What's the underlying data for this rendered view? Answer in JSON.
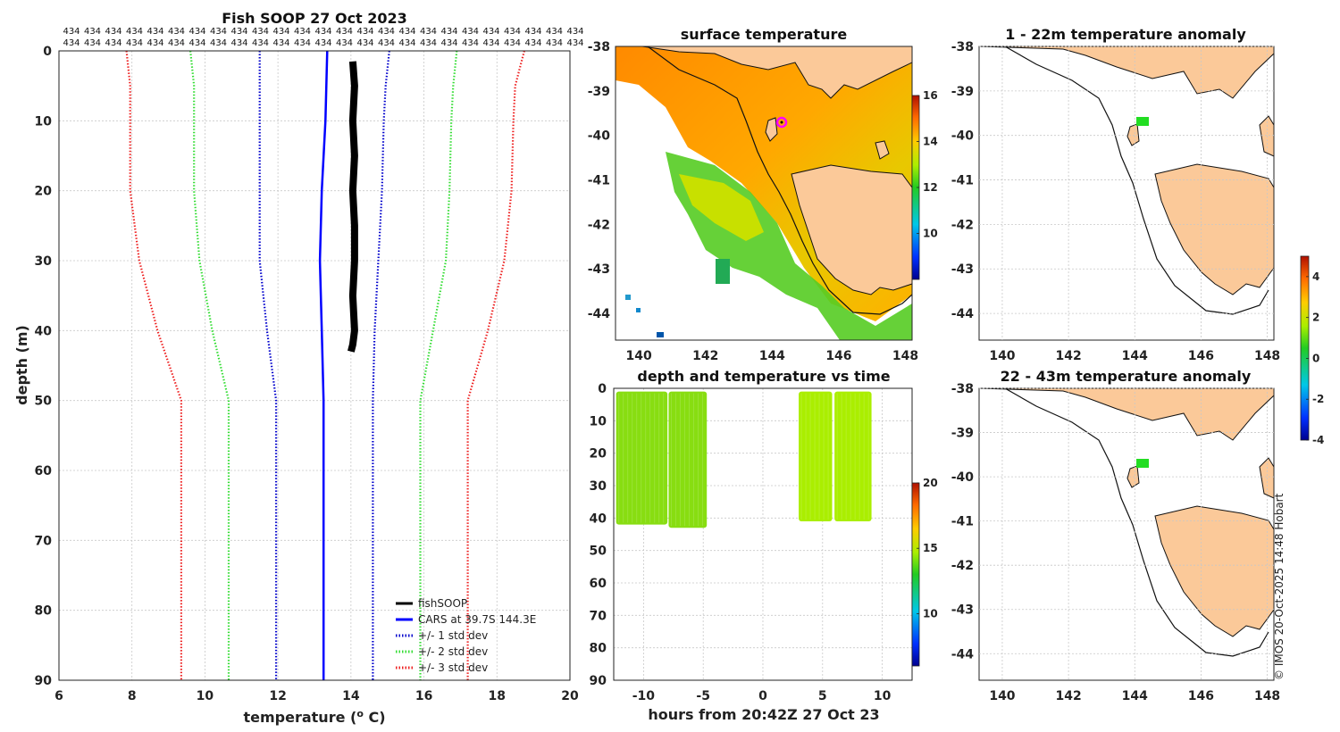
{
  "colors": {
    "black": "#000000",
    "cars": "#0000ff",
    "std1": "#0000cc",
    "std2": "#33dd33",
    "std3": "#ee2222",
    "land": "#fbc999",
    "coast": "#111111",
    "magenta": "#ff00ff",
    "anomaly_green": "#22dd22"
  },
  "chart_data": [
    {
      "type": "line",
      "title": "Fish SOOP 27 Oct 2023",
      "xlabel": "temperature (o C)",
      "xlabel_main": "temperature (",
      "xlabel_sup": "o",
      "xlabel_end": " C)",
      "ylabel": "depth (m)",
      "xlim": [
        6,
        20
      ],
      "ylim": [
        90,
        0
      ],
      "xticks": [
        "6",
        "8",
        "10",
        "12",
        "14",
        "16",
        "18",
        "20"
      ],
      "yticks": [
        "0",
        "10",
        "20",
        "30",
        "40",
        "50",
        "60",
        "70",
        "80",
        "90"
      ],
      "sample_counts_row": [
        "434",
        "434",
        "434",
        "434",
        "434",
        "434",
        "434",
        "434",
        "434",
        "434",
        "434",
        "434",
        "434",
        "434",
        "434",
        "434",
        "434",
        "434",
        "434",
        "434",
        "434",
        "434",
        "434",
        "434",
        "434"
      ],
      "series": [
        {
          "name": "fishSOOP",
          "style": "solid",
          "color": "#000000",
          "points": [
            [
              14.05,
              1.5
            ],
            [
              14.1,
              5
            ],
            [
              14.05,
              10
            ],
            [
              14.1,
              15
            ],
            [
              14.05,
              20
            ],
            [
              14.1,
              25
            ],
            [
              14.1,
              30
            ],
            [
              14.05,
              35
            ],
            [
              14.1,
              40
            ],
            [
              14.05,
              42
            ],
            [
              14.0,
              43
            ]
          ]
        },
        {
          "name": "CARS at 39.7S 144.3E",
          "style": "solid",
          "color": "#0000ff",
          "points": [
            [
              13.35,
              0
            ],
            [
              13.3,
              10
            ],
            [
              13.2,
              20
            ],
            [
              13.15,
              30
            ],
            [
              13.2,
              40
            ],
            [
              13.25,
              50
            ],
            [
              13.25,
              60
            ],
            [
              13.25,
              70
            ],
            [
              13.25,
              80
            ],
            [
              13.25,
              90
            ]
          ]
        },
        {
          "name": "-1 std",
          "style": "dotted",
          "color": "#0000cc",
          "points": [
            [
              11.5,
              0
            ],
            [
              11.5,
              5
            ],
            [
              11.5,
              10
            ],
            [
              11.5,
              20
            ],
            [
              11.5,
              30
            ],
            [
              11.7,
              40
            ],
            [
              11.95,
              50
            ],
            [
              11.95,
              60
            ],
            [
              11.95,
              70
            ],
            [
              11.95,
              80
            ],
            [
              11.95,
              90
            ]
          ]
        },
        {
          "name": "+1 std",
          "style": "dotted",
          "color": "#0000cc",
          "points": [
            [
              15.05,
              0
            ],
            [
              14.95,
              5
            ],
            [
              14.9,
              10
            ],
            [
              14.85,
              20
            ],
            [
              14.75,
              30
            ],
            [
              14.65,
              40
            ],
            [
              14.6,
              50
            ],
            [
              14.6,
              60
            ],
            [
              14.6,
              70
            ],
            [
              14.6,
              80
            ],
            [
              14.6,
              90
            ]
          ]
        },
        {
          "name": "-2 std",
          "style": "dotted",
          "color": "#33dd33",
          "points": [
            [
              9.6,
              0
            ],
            [
              9.7,
              5
            ],
            [
              9.7,
              10
            ],
            [
              9.7,
              20
            ],
            [
              9.85,
              30
            ],
            [
              10.2,
              40
            ],
            [
              10.65,
              50
            ],
            [
              10.65,
              60
            ],
            [
              10.65,
              70
            ],
            [
              10.65,
              80
            ],
            [
              10.65,
              90
            ]
          ]
        },
        {
          "name": "+2 std",
          "style": "dotted",
          "color": "#33dd33",
          "points": [
            [
              16.9,
              0
            ],
            [
              16.8,
              5
            ],
            [
              16.75,
              10
            ],
            [
              16.7,
              20
            ],
            [
              16.6,
              30
            ],
            [
              16.25,
              40
            ],
            [
              15.9,
              50
            ],
            [
              15.9,
              60
            ],
            [
              15.9,
              70
            ],
            [
              15.9,
              80
            ],
            [
              15.9,
              90
            ]
          ]
        },
        {
          "name": "-3 std",
          "style": "dotted",
          "color": "#ee2222",
          "points": [
            [
              7.85,
              0
            ],
            [
              7.95,
              5
            ],
            [
              7.95,
              10
            ],
            [
              7.95,
              20
            ],
            [
              8.2,
              30
            ],
            [
              8.7,
              40
            ],
            [
              9.35,
              50
            ],
            [
              9.35,
              60
            ],
            [
              9.35,
              70
            ],
            [
              9.35,
              80
            ],
            [
              9.35,
              90
            ]
          ]
        },
        {
          "name": "+3 std",
          "style": "dotted",
          "color": "#ee2222",
          "points": [
            [
              18.75,
              0
            ],
            [
              18.5,
              5
            ],
            [
              18.45,
              10
            ],
            [
              18.4,
              20
            ],
            [
              18.2,
              30
            ],
            [
              17.75,
              40
            ],
            [
              17.2,
              50
            ],
            [
              17.2,
              60
            ],
            [
              17.2,
              70
            ],
            [
              17.2,
              80
            ],
            [
              17.2,
              90
            ]
          ]
        }
      ],
      "legend": [
        {
          "label": "fishSOOP",
          "style": "solid",
          "color": "#000000"
        },
        {
          "label": "CARS at 39.7S 144.3E",
          "style": "solid",
          "color": "#0000ff"
        },
        {
          "label": "+/- 1 std dev",
          "style": "dotted",
          "color": "#0000cc"
        },
        {
          "label": "+/- 2 std dev",
          "style": "dotted",
          "color": "#33dd33"
        },
        {
          "label": "+/- 3 std dev",
          "style": "dotted",
          "color": "#ee2222"
        }
      ],
      "legend_position": "bottom-right"
    },
    {
      "type": "heatmap",
      "title": "surface temperature",
      "xlim": [
        139.3,
        148.2
      ],
      "ylim": [
        -44.6,
        -38
      ],
      "xticks": [
        "140",
        "142",
        "144",
        "146",
        "148"
      ],
      "yticks": [
        "-38",
        "-39",
        "-40",
        "-41",
        "-42",
        "-43",
        "-44"
      ],
      "colorbar": {
        "min": 8,
        "max": 16,
        "ticks": [
          "16",
          "14",
          "12",
          "10"
        ]
      },
      "vessel_position": {
        "lon": 144.3,
        "lat": -39.7
      }
    },
    {
      "type": "scatter",
      "title": "depth and temperature vs time",
      "xlabel": "hours from 20:42Z 27 Oct 23",
      "xlim": [
        -12.5,
        12.5
      ],
      "ylim": [
        90,
        0
      ],
      "xticks": [
        "-10",
        "-5",
        "0",
        "5",
        "10"
      ],
      "yticks": [
        "0",
        "10",
        "20",
        "30",
        "40",
        "50",
        "60",
        "70",
        "80",
        "90"
      ],
      "colorbar": {
        "min": 6,
        "max": 20,
        "ticks": [
          "20",
          "15",
          "10"
        ]
      },
      "segments": [
        {
          "t_start": -12.3,
          "t_end": -8.0,
          "depth_min": 1,
          "depth_max": 42,
          "temp": 14.1
        },
        {
          "t_start": -7.9,
          "t_end": -4.7,
          "depth_min": 1,
          "depth_max": 43,
          "temp": 14.1
        },
        {
          "t_start": 3.0,
          "t_end": 5.8,
          "depth_min": 1,
          "depth_max": 41,
          "temp": 14.6
        },
        {
          "t_start": 6.0,
          "t_end": 9.1,
          "depth_min": 1,
          "depth_max": 41,
          "temp": 14.7
        }
      ]
    },
    {
      "type": "heatmap",
      "title": "1 - 22m temperature anomaly",
      "xlim": [
        139.3,
        148.2
      ],
      "ylim": [
        -44.6,
        -38
      ],
      "xticks": [
        "140",
        "142",
        "144",
        "146",
        "148"
      ],
      "yticks": [
        "-38",
        "-39",
        "-40",
        "-41",
        "-42",
        "-43",
        "-44"
      ],
      "anomaly_patch": {
        "lon": 144.3,
        "lat": -39.7,
        "value": 0.5
      }
    },
    {
      "type": "heatmap",
      "title": "22 - 43m temperature anomaly",
      "xlim": [
        139.3,
        148.2
      ],
      "ylim": [
        -44.6,
        -38
      ],
      "xticks": [
        "140",
        "142",
        "144",
        "146",
        "148"
      ],
      "yticks": [
        "-38",
        "-39",
        "-40",
        "-41",
        "-42",
        "-43",
        "-44"
      ],
      "anomaly_patch": {
        "lon": 144.3,
        "lat": -39.7,
        "value": 0.5
      },
      "colorbar": {
        "min": -4,
        "max": 5,
        "ticks": [
          "4",
          "2",
          "0",
          "-2",
          "-4"
        ]
      }
    }
  ],
  "credit": "© IMOS 20-Oct-2025 14:48 Hobart"
}
